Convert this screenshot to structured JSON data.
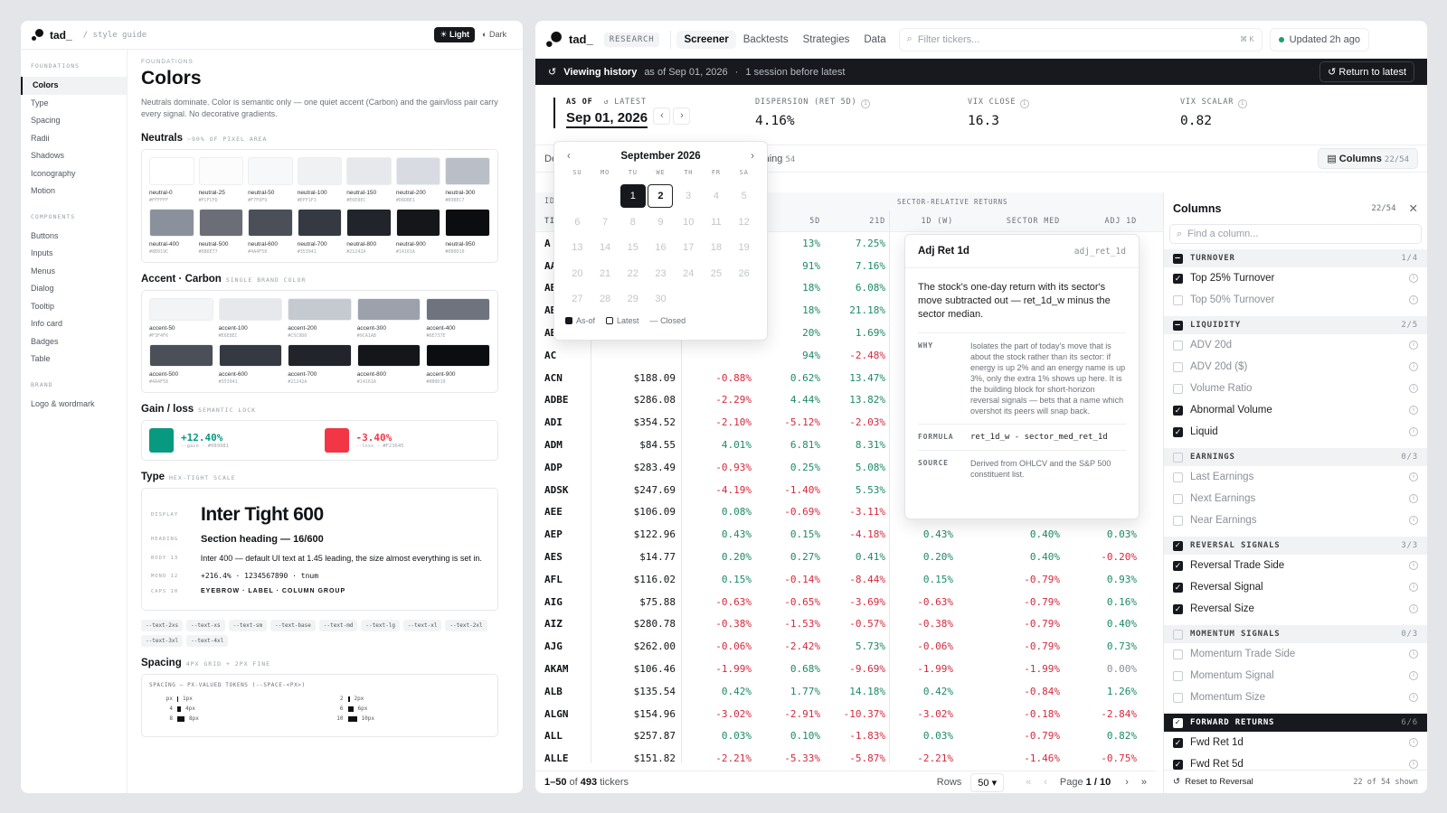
{
  "left": {
    "brand": "tad_",
    "crumb": "/ style guide",
    "theme_light": "Light",
    "theme_dark": "Dark",
    "nav": [
      {
        "h": "FOUNDATIONS",
        "items": [
          "Colors",
          "Type",
          "Spacing",
          "Radii",
          "Shadows",
          "Iconography",
          "Motion"
        ]
      },
      {
        "h": "COMPONENTS",
        "items": [
          "Buttons",
          "Inputs",
          "Menus",
          "Dialog",
          "Tooltip",
          "Info card",
          "Badges",
          "Table"
        ]
      },
      {
        "h": "BRAND",
        "items": [
          "Logo & wordmark"
        ]
      }
    ],
    "eyebrow": "FOUNDATIONS",
    "title": "Colors",
    "desc": "Neutrals dominate. Color is semantic only — one quiet accent (Carbon) and the gain/loss pair carry every signal. No decorative gradients.",
    "neutrals_h": "Neutrals",
    "neutrals_sub": "~90% OF PIXEL AREA",
    "neutrals": [
      {
        "n": "neutral-0",
        "hex": "#FFFFFF"
      },
      {
        "n": "neutral-25",
        "hex": "#FCFCFD"
      },
      {
        "n": "neutral-50",
        "hex": "#F7F8F9"
      },
      {
        "n": "neutral-100",
        "hex": "#EFF1F3"
      },
      {
        "n": "neutral-150",
        "hex": "#E6E8EC"
      },
      {
        "n": "neutral-200",
        "hex": "#D8DBE1"
      },
      {
        "n": "neutral-300",
        "hex": "#B9BEC7"
      },
      {
        "n": "neutral-400",
        "hex": "#8B919C"
      },
      {
        "n": "neutral-500",
        "hex": "#6B6E77"
      },
      {
        "n": "neutral-600",
        "hex": "#4A4F58"
      },
      {
        "n": "neutral-700",
        "hex": "#353941"
      },
      {
        "n": "neutral-800",
        "hex": "#21242A"
      },
      {
        "n": "neutral-900",
        "hex": "#14161A"
      },
      {
        "n": "neutral-950",
        "hex": "#0B0D10"
      }
    ],
    "accent_h": "Accent · Carbon",
    "accent_sub": "SINGLE BRAND COLOR",
    "accents": [
      {
        "n": "accent-50",
        "hex": "#F3F4F6"
      },
      {
        "n": "accent-100",
        "hex": "#E6E8EC"
      },
      {
        "n": "accent-200",
        "hex": "#C5C9D0"
      },
      {
        "n": "accent-300",
        "hex": "#9CA1AB"
      },
      {
        "n": "accent-400",
        "hex": "#6E737E"
      },
      {
        "n": "accent-500",
        "hex": "#4A4F58"
      },
      {
        "n": "accent-600",
        "hex": "#353941"
      },
      {
        "n": "accent-700",
        "hex": "#21242A"
      },
      {
        "n": "accent-800",
        "hex": "#14161A"
      },
      {
        "n": "accent-900",
        "hex": "#0B0D10"
      }
    ],
    "gl_h": "Gain / loss",
    "gl_sub": "SEMANTIC LOCK",
    "gain": {
      "v": "+12.40%",
      "t": "--gain · #089981",
      "color": "#089981"
    },
    "loss": {
      "v": "-3.40%",
      "t": "--loss · #F23645",
      "color": "#F23645"
    },
    "type_h": "Type",
    "type_sub": "HEX-TIGHT SCALE",
    "type_rows": [
      {
        "k": "DISPLAY",
        "v": "Inter Tight 600"
      },
      {
        "k": "HEADING",
        "v": "Section heading — 16/600"
      },
      {
        "k": "BODY 13",
        "v": "Inter 400 — default UI text at 1.45 leading, the size almost everything is set in."
      },
      {
        "k": "MONO 12",
        "v": "+216.4% · 1234567890 · tnum"
      },
      {
        "k": "CAPS 10",
        "v": "EYEBROW · LABEL · COLUMN GROUP"
      }
    ],
    "tokens": [
      "--text-2xs",
      "--text-xs",
      "--text-sm",
      "--text-base",
      "--text-md",
      "--text-lg",
      "--text-xl",
      "--text-2xl",
      "--text-3xl",
      "--text-4xl"
    ],
    "spacing_h": "Spacing",
    "spacing_sub": "4PX GRID + 2PX FINE",
    "spacing_cap": "SPACING — PX-VALUED TOKENS (--SPACE-<PX>)",
    "spacing_left": [
      {
        "k": "px",
        "v": "1px",
        "w": 1
      },
      {
        "k": "4",
        "v": "4px",
        "w": 4
      },
      {
        "k": "8",
        "v": "8px",
        "w": 8
      }
    ],
    "spacing_right": [
      {
        "k": "2",
        "v": "2px",
        "w": 2
      },
      {
        "k": "6",
        "v": "6px",
        "w": 6
      },
      {
        "k": "10",
        "v": "10px",
        "w": 10
      }
    ]
  },
  "right": {
    "brand": "tad_",
    "tag": "RESEARCH",
    "tabs": [
      "Screener",
      "Backtests",
      "Strategies",
      "Data"
    ],
    "filter_ph": "Filter tickers...",
    "kbd": "⌘ K",
    "updated": "Updated 2h ago",
    "hist": {
      "label": "Viewing history",
      "asof": "as of Sep 01, 2026",
      "dot": "·",
      "sess": "1 session before latest",
      "btn": "Return to latest"
    },
    "asof_l": "AS OF",
    "latest_l": "LATEST",
    "date": "Sep 01, 2026",
    "stats": [
      {
        "l": "DISPERSION (RET 5D)",
        "v": "4.16%"
      },
      {
        "l": "VIX CLOSE",
        "v": "16.3"
      },
      {
        "l": "VIX SCALAR",
        "v": "0.82"
      }
    ],
    "sub_left": "De",
    "sub_mid": "ything",
    "sub_mid_n": "54",
    "columns_btn": "Columns",
    "columns_cnt": "22/54",
    "grp_header": "SECTOR-RELATIVE RETURNS",
    "grp_left": "ID",
    "headers": [
      "TI",
      "",
      "",
      "5D",
      "21D",
      "1D (W)",
      "SECTOR MED",
      "ADJ 1D"
    ],
    "rows": [
      [
        "A",
        "",
        "",
        "13%",
        "7.25%",
        "",
        "",
        ""
      ],
      [
        "AA",
        "",
        "",
        "91%",
        "7.16%",
        "",
        "",
        ""
      ],
      [
        "AB",
        "",
        "",
        "18%",
        "6.08%",
        "",
        "",
        ""
      ],
      [
        "AB",
        "",
        "",
        "18%",
        "21.18%",
        "",
        "",
        ""
      ],
      [
        "AB",
        "",
        "",
        "20%",
        "1.69%",
        "",
        "",
        ""
      ],
      [
        "AC",
        "",
        "",
        "94%",
        "-2.48%",
        "",
        "",
        ""
      ],
      [
        "ACN",
        "$188.09",
        "-0.88%",
        "0.62%",
        "13.47%",
        "",
        "",
        ""
      ],
      [
        "ADBE",
        "$286.08",
        "-2.29%",
        "4.44%",
        "13.82%",
        "",
        "",
        ""
      ],
      [
        "ADI",
        "$354.52",
        "-2.10%",
        "-5.12%",
        "-2.03%",
        "",
        "",
        ""
      ],
      [
        "ADM",
        "$84.55",
        "4.01%",
        "6.81%",
        "8.31%",
        "",
        "",
        ""
      ],
      [
        "ADP",
        "$283.49",
        "-0.93%",
        "0.25%",
        "5.08%",
        "",
        "",
        ""
      ],
      [
        "ADSK",
        "$247.69",
        "-4.19%",
        "-1.40%",
        "5.53%",
        "",
        "",
        ""
      ],
      [
        "AEE",
        "$106.09",
        "0.08%",
        "-0.69%",
        "-3.11%",
        "",
        "",
        ""
      ],
      [
        "AEP",
        "$122.96",
        "0.43%",
        "0.15%",
        "-4.18%",
        "0.43%",
        "0.40%",
        "0.03%"
      ],
      [
        "AES",
        "$14.77",
        "0.20%",
        "0.27%",
        "0.41%",
        "0.20%",
        "0.40%",
        "-0.20%"
      ],
      [
        "AFL",
        "$116.02",
        "0.15%",
        "-0.14%",
        "-8.44%",
        "0.15%",
        "-0.79%",
        "0.93%"
      ],
      [
        "AIG",
        "$75.88",
        "-0.63%",
        "-0.65%",
        "-3.69%",
        "-0.63%",
        "-0.79%",
        "0.16%"
      ],
      [
        "AIZ",
        "$280.78",
        "-0.38%",
        "-1.53%",
        "-0.57%",
        "-0.38%",
        "-0.79%",
        "0.40%"
      ],
      [
        "AJG",
        "$262.00",
        "-0.06%",
        "-2.42%",
        "5.73%",
        "-0.06%",
        "-0.79%",
        "0.73%"
      ],
      [
        "AKAM",
        "$106.46",
        "-1.99%",
        "0.68%",
        "-9.69%",
        "-1.99%",
        "-1.99%",
        "0.00%"
      ],
      [
        "ALB",
        "$135.54",
        "0.42%",
        "1.77%",
        "14.18%",
        "0.42%",
        "-0.84%",
        "1.26%"
      ],
      [
        "ALGN",
        "$154.96",
        "-3.02%",
        "-2.91%",
        "-10.37%",
        "-3.02%",
        "-0.18%",
        "-2.84%"
      ],
      [
        "ALL",
        "$257.87",
        "0.03%",
        "0.10%",
        "-1.83%",
        "0.03%",
        "-0.79%",
        "0.82%"
      ],
      [
        "ALLE",
        "$151.82",
        "-2.21%",
        "-5.33%",
        "-5.87%",
        "-2.21%",
        "-1.46%",
        "-0.75%"
      ]
    ],
    "foot": {
      "range": "1–50",
      "of": "of",
      "total": "493",
      "unit": "tickers",
      "rows_l": "Rows",
      "rows_v": "50",
      "page": "Page",
      "page_v": "1 / 10"
    },
    "cal": {
      "month": "September 2026",
      "dow": [
        "SU",
        "MO",
        "TU",
        "WE",
        "TH",
        "FR",
        "SA"
      ],
      "days": [
        "",
        "",
        "1",
        "2",
        "3",
        "4",
        "5",
        "6",
        "7",
        "8",
        "9",
        "10",
        "11",
        "12",
        "13",
        "14",
        "15",
        "16",
        "17",
        "18",
        "19",
        "20",
        "21",
        "22",
        "23",
        "24",
        "25",
        "26",
        "27",
        "28",
        "29",
        "30",
        "",
        "",
        ""
      ],
      "legend": [
        "As-of",
        "Latest",
        "Closed"
      ]
    },
    "tip": {
      "title": "Adj Ret 1d",
      "key": "adj_ret_1d",
      "body": "The stock's one-day return with its sector's move subtracted out — ret_1d_w minus the sector median.",
      "why_k": "WHY",
      "why": "Isolates the part of today's move that is about the stock rather than its sector: if energy is up 2% and an energy name is up 3%, only the extra 1% shows up here. It is the building block for short-horizon reversal signals — bets that a name which overshot its peers will snap back.",
      "formula_k": "FORMULA",
      "formula": "ret_1d_w - sector_med_ret_1d",
      "source_k": "SOURCE",
      "source": "Derived from OHLCV and the S&P 500 constituent list."
    },
    "cols": {
      "title": "Columns",
      "cnt": "22/54",
      "search_ph": "Find a column...",
      "groups": [
        {
          "name": "TURNOVER",
          "cnt": "1/4",
          "state": "ind",
          "items": [
            {
              "n": "Top 25% Turnover",
              "on": true
            },
            {
              "n": "Top 50% Turnover",
              "on": false
            }
          ]
        },
        {
          "name": "LIQUIDITY",
          "cnt": "2/5",
          "state": "ind",
          "items": [
            {
              "n": "ADV 20d",
              "on": false
            },
            {
              "n": "ADV 20d ($)",
              "on": false
            },
            {
              "n": "Volume Ratio",
              "on": false
            },
            {
              "n": "Abnormal Volume",
              "on": true
            },
            {
              "n": "Liquid",
              "on": true
            }
          ]
        },
        {
          "name": "EARNINGS",
          "cnt": "0/3",
          "state": "off",
          "items": [
            {
              "n": "Last Earnings",
              "on": false
            },
            {
              "n": "Next Earnings",
              "on": false
            },
            {
              "n": "Near Earnings",
              "on": false
            }
          ]
        },
        {
          "name": "REVERSAL SIGNALS",
          "cnt": "3/3",
          "state": "on",
          "items": [
            {
              "n": "Reversal Trade Side",
              "on": true
            },
            {
              "n": "Reversal Signal",
              "on": true
            },
            {
              "n": "Reversal Size",
              "on": true
            }
          ]
        },
        {
          "name": "MOMENTUM SIGNALS",
          "cnt": "0/3",
          "state": "off",
          "items": [
            {
              "n": "Momentum Trade Side",
              "on": false
            },
            {
              "n": "Momentum Signal",
              "on": false
            },
            {
              "n": "Momentum Size",
              "on": false
            }
          ]
        },
        {
          "name": "FORWARD RETURNS",
          "cnt": "6/6",
          "state": "on",
          "dark": true,
          "items": [
            {
              "n": "Fwd Ret 1d",
              "on": true
            },
            {
              "n": "Fwd Ret 5d",
              "on": true
            }
          ]
        }
      ],
      "reset": "Reset to Reversal",
      "shown": "22 of 54 shown"
    }
  }
}
